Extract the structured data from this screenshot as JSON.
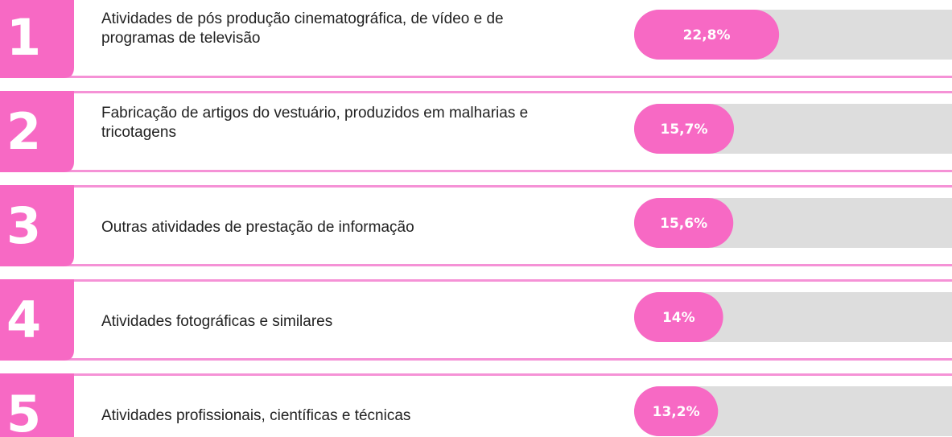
{
  "chart_data": {
    "type": "bar",
    "ranks": [
      1,
      2,
      3,
      4,
      5
    ],
    "categories": [
      "Atividades de pós produção cinematográfica, de vídeo e de programas de televisão",
      "Fabricação de artigos do vestuário, produzidos em malharias e tricotagens",
      "Outras atividades de prestação de informação",
      "Atividades fotográficas e similares",
      "Atividades profissionais, científicas e técnicas"
    ],
    "values": [
      22.8,
      15.7,
      15.6,
      14,
      13.2
    ],
    "value_labels": [
      "22,8%",
      "15,7%",
      "15,6%",
      "14%",
      "13,2%"
    ],
    "xlim": [
      0,
      50
    ],
    "color": "#f769c4"
  }
}
